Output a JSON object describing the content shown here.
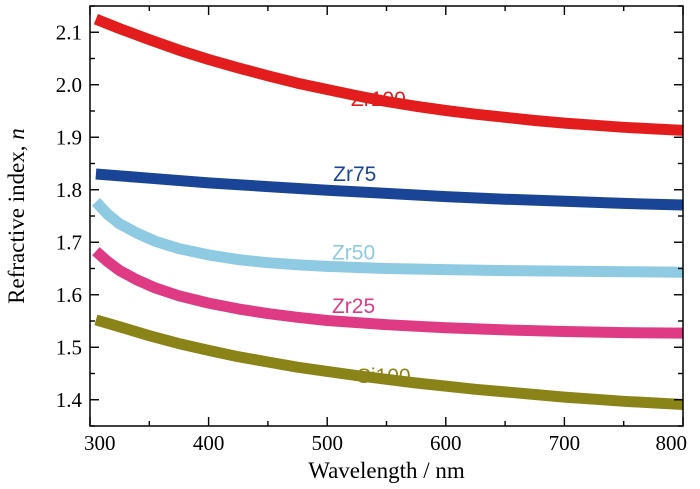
{
  "chart_data": {
    "type": "line",
    "title": "",
    "xlabel": "Wavelength / nm",
    "ylabel_main": "Refractive index, ",
    "ylabel_var": "n",
    "xlim": [
      300,
      800
    ],
    "ylim": [
      1.35,
      2.15
    ],
    "xticks": [
      300,
      400,
      500,
      600,
      700,
      800
    ],
    "yticks": [
      1.4,
      1.5,
      1.6,
      1.7,
      1.8,
      1.9,
      2.0,
      2.1
    ],
    "grid": false,
    "legend": "inline labels",
    "series": [
      {
        "name": "Zr100",
        "color": "#e31d1d",
        "label_at": [
          520,
          1.96
        ],
        "x": [
          305,
          325,
          350,
          375,
          400,
          425,
          450,
          475,
          500,
          525,
          550,
          575,
          600,
          625,
          650,
          675,
          700,
          725,
          750,
          775,
          800
        ],
        "y": [
          2.125,
          2.107,
          2.086,
          2.066,
          2.048,
          2.032,
          2.017,
          2.003,
          1.991,
          1.979,
          1.968,
          1.959,
          1.951,
          1.944,
          1.938,
          1.932,
          1.927,
          1.923,
          1.919,
          1.916,
          1.913
        ]
      },
      {
        "name": "Zr75",
        "color": "#1a4596",
        "label_at": [
          505,
          1.817
        ],
        "x": [
          305,
          350,
          400,
          450,
          500,
          550,
          600,
          650,
          700,
          750,
          800
        ],
        "y": [
          1.83,
          1.822,
          1.813,
          1.806,
          1.799,
          1.793,
          1.787,
          1.782,
          1.778,
          1.774,
          1.771
        ]
      },
      {
        "name": "Zr50",
        "color": "#8ecae2",
        "label_at": [
          504,
          1.667
        ],
        "x": [
          305,
          315,
          325,
          340,
          355,
          375,
          400,
          425,
          450,
          475,
          500,
          550,
          600,
          650,
          700,
          750,
          800
        ],
        "y": [
          1.777,
          1.753,
          1.735,
          1.717,
          1.702,
          1.688,
          1.676,
          1.667,
          1.661,
          1.657,
          1.654,
          1.65,
          1.648,
          1.646,
          1.645,
          1.644,
          1.643
        ]
      },
      {
        "name": "Zr25",
        "color": "#df3a84",
        "label_at": [
          504,
          1.565
        ],
        "x": [
          305,
          315,
          325,
          340,
          355,
          375,
          400,
          425,
          450,
          475,
          500,
          550,
          600,
          650,
          700,
          750,
          800
        ],
        "y": [
          1.683,
          1.663,
          1.646,
          1.628,
          1.613,
          1.598,
          1.584,
          1.573,
          1.564,
          1.557,
          1.551,
          1.543,
          1.537,
          1.533,
          1.53,
          1.528,
          1.527
        ]
      },
      {
        "name": "Si100",
        "color": "#8a8318",
        "label_at": [
          525,
          1.432
        ],
        "x": [
          305,
          325,
          350,
          375,
          400,
          425,
          450,
          475,
          500,
          525,
          550,
          575,
          600,
          625,
          650,
          675,
          700,
          725,
          750,
          775,
          800
        ],
        "y": [
          1.552,
          1.539,
          1.522,
          1.507,
          1.494,
          1.482,
          1.472,
          1.462,
          1.454,
          1.446,
          1.439,
          1.432,
          1.426,
          1.42,
          1.415,
          1.41,
          1.405,
          1.401,
          1.397,
          1.394,
          1.391
        ]
      }
    ]
  }
}
